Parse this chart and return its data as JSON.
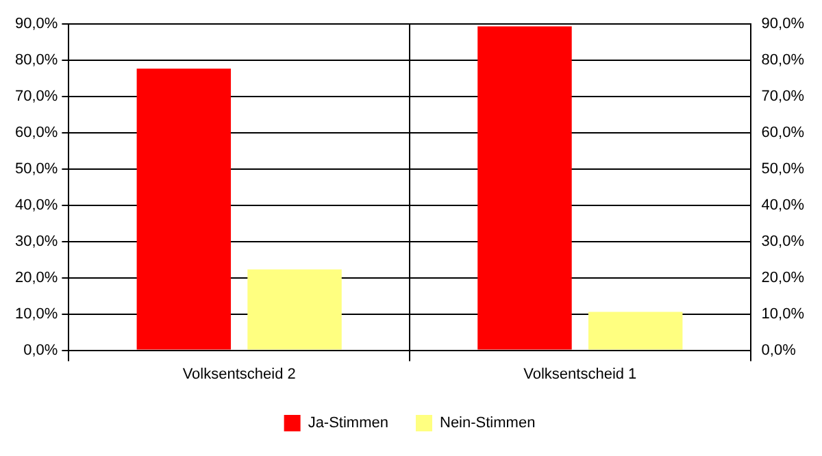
{
  "chart_data": {
    "type": "bar",
    "categories": [
      "Volksentscheid 2",
      "Volksentscheid 1"
    ],
    "series": [
      {
        "name": "Ja-Stimmen",
        "color": "#ff0000",
        "values": [
          77.7,
          89.4
        ]
      },
      {
        "name": "Nein-Stimmen",
        "color": "#ffff80",
        "values": [
          22.3,
          10.6
        ]
      }
    ],
    "ylim": [
      0,
      90
    ],
    "yticks": [
      {
        "value": 0,
        "label": "0,0%"
      },
      {
        "value": 10,
        "label": "10,0%"
      },
      {
        "value": 20,
        "label": "20,0%"
      },
      {
        "value": 30,
        "label": "30,0%"
      },
      {
        "value": 40,
        "label": "40,0%"
      },
      {
        "value": 50,
        "label": "50,0%"
      },
      {
        "value": 60,
        "label": "60,0%"
      },
      {
        "value": 70,
        "label": "70,0%"
      },
      {
        "value": 80,
        "label": "80,0%"
      },
      {
        "value": 90,
        "label": "90,0%"
      }
    ],
    "y2lim": [
      0,
      90
    ],
    "y2ticks": [
      {
        "value": 0,
        "label": "0,0%"
      },
      {
        "value": 10,
        "label": "10,0%"
      },
      {
        "value": 20,
        "label": "20,0%"
      },
      {
        "value": 30,
        "label": "30,0%"
      },
      {
        "value": 40,
        "label": "40,0%"
      },
      {
        "value": 50,
        "label": "50,0%"
      },
      {
        "value": 60,
        "label": "60,0%"
      },
      {
        "value": 70,
        "label": "70,0%"
      },
      {
        "value": 80,
        "label": "80,0%"
      },
      {
        "value": 90,
        "label": "90,0%"
      }
    ],
    "grid": true,
    "legend": "bottom"
  }
}
